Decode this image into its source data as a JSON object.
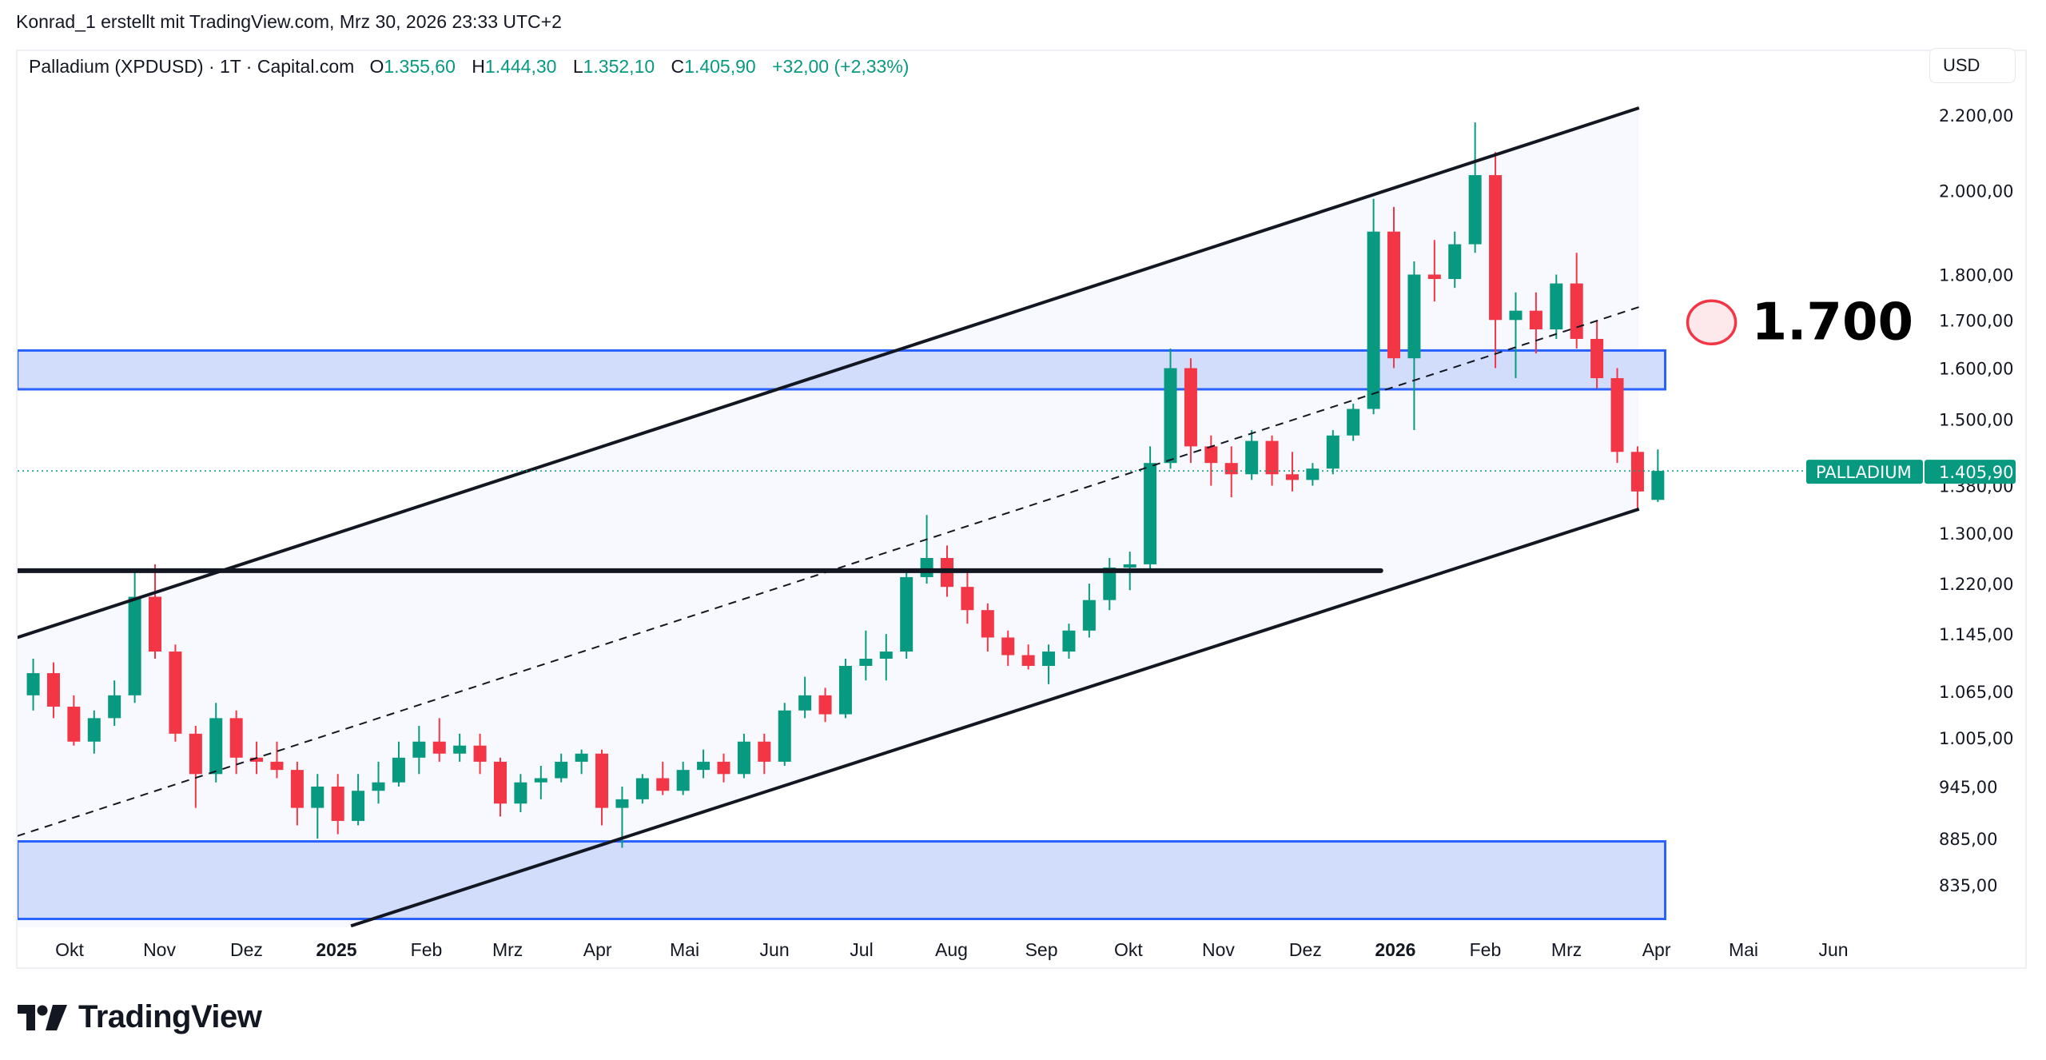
{
  "header": {
    "credit": "Konrad_1 erstellt mit TradingView.com, Mrz 30, 2026 23:33 UTC+2"
  },
  "legend": {
    "symbol": "Palladium (XPDUSD) · 1T · Capital.com",
    "open_label": "O",
    "open": "1.355,60",
    "high_label": "H",
    "high": "1.444,30",
    "low_label": "L",
    "low": "1.352,10",
    "close_label": "C",
    "close": "1.405,90",
    "change": "+32,00 (+2,33%)"
  },
  "currency_button": "USD",
  "last_price_tag": {
    "name": "PALLADIUM",
    "value": "1.405,90",
    "price": 1405.9
  },
  "annotation": {
    "text": "1.700",
    "icon": "circle-marker-icon"
  },
  "logo": {
    "text": "TradingView",
    "icon": "tradingview-logo-icon"
  },
  "colors": {
    "up": "#089981",
    "down": "#f23645",
    "zone": "#2962ff",
    "zone_fill": "#d0dbfc",
    "channel_fill": "#f8f9fe",
    "annotation": "#f23645"
  },
  "chart_data": {
    "type": "candlestick",
    "scale": "log",
    "grid": false,
    "ylim": [
      800,
      2260
    ],
    "xlim": [
      "2024-09-13",
      "2026-06-20"
    ],
    "y_ticks": [
      {
        "value": 2200,
        "label": "2.200,00"
      },
      {
        "value": 2000,
        "label": "2.000,00"
      },
      {
        "value": 1800,
        "label": "1.800,00"
      },
      {
        "value": 1700,
        "label": "1.700,00"
      },
      {
        "value": 1600,
        "label": "1.600,00"
      },
      {
        "value": 1500,
        "label": "1.500,00"
      },
      {
        "value": 1380,
        "label": "1.380,00"
      },
      {
        "value": 1300,
        "label": "1.300,00"
      },
      {
        "value": 1220,
        "label": "1.220,00"
      },
      {
        "value": 1145,
        "label": "1.145,00"
      },
      {
        "value": 1065,
        "label": "1.065,00"
      },
      {
        "value": 1005,
        "label": "1.005,00"
      },
      {
        "value": 945,
        "label": "945,00"
      },
      {
        "value": 885,
        "label": "885,00"
      },
      {
        "value": 835,
        "label": "835,00"
      }
    ],
    "x_ticks": [
      {
        "date": "2024-10-01",
        "label": "Okt"
      },
      {
        "date": "2024-11-01",
        "label": "Nov"
      },
      {
        "date": "2024-12-01",
        "label": "Dez"
      },
      {
        "date": "2025-01-01",
        "label": "2025",
        "bold": true
      },
      {
        "date": "2025-02-01",
        "label": "Feb"
      },
      {
        "date": "2025-03-01",
        "label": "Mrz"
      },
      {
        "date": "2025-04-01",
        "label": "Apr"
      },
      {
        "date": "2025-05-01",
        "label": "Mai"
      },
      {
        "date": "2025-06-01",
        "label": "Jun"
      },
      {
        "date": "2025-07-01",
        "label": "Jul"
      },
      {
        "date": "2025-08-01",
        "label": "Aug"
      },
      {
        "date": "2025-09-01",
        "label": "Sep"
      },
      {
        "date": "2025-10-01",
        "label": "Okt"
      },
      {
        "date": "2025-11-01",
        "label": "Nov"
      },
      {
        "date": "2025-12-01",
        "label": "Dez"
      },
      {
        "date": "2026-01-01",
        "label": "2026",
        "bold": true
      },
      {
        "date": "2026-02-01",
        "label": "Feb"
      },
      {
        "date": "2026-03-01",
        "label": "Mrz"
      },
      {
        "date": "2026-04-01",
        "label": "Apr"
      },
      {
        "date": "2026-05-01",
        "label": "Mai"
      },
      {
        "date": "2026-06-01",
        "label": "Jun"
      }
    ],
    "candles_columns": [
      "date",
      "open",
      "high",
      "low",
      "close"
    ],
    "candles": [
      [
        "2024-09-16",
        1060,
        1110,
        1040,
        1090
      ],
      [
        "2024-09-23",
        1090,
        1105,
        1030,
        1045
      ],
      [
        "2024-09-30",
        1045,
        1060,
        995,
        1000
      ],
      [
        "2024-10-07",
        1000,
        1040,
        985,
        1030
      ],
      [
        "2024-10-14",
        1030,
        1080,
        1020,
        1060
      ],
      [
        "2024-10-21",
        1060,
        1240,
        1050,
        1200
      ],
      [
        "2024-10-28",
        1200,
        1250,
        1110,
        1120
      ],
      [
        "2024-11-04",
        1120,
        1130,
        1000,
        1010
      ],
      [
        "2024-11-11",
        1010,
        1020,
        920,
        960
      ],
      [
        "2024-11-18",
        960,
        1050,
        950,
        1030
      ],
      [
        "2024-11-25",
        1030,
        1040,
        960,
        980
      ],
      [
        "2024-12-02",
        980,
        1000,
        960,
        975
      ],
      [
        "2024-12-09",
        975,
        1000,
        955,
        965
      ],
      [
        "2024-12-16",
        965,
        975,
        900,
        920
      ],
      [
        "2024-12-23",
        920,
        960,
        885,
        945
      ],
      [
        "2024-12-30",
        945,
        960,
        890,
        905
      ],
      [
        "2025-01-06",
        905,
        960,
        900,
        940
      ],
      [
        "2025-01-13",
        940,
        975,
        925,
        950
      ],
      [
        "2025-01-20",
        950,
        1000,
        945,
        980
      ],
      [
        "2025-01-27",
        980,
        1020,
        960,
        1000
      ],
      [
        "2025-02-03",
        1000,
        1030,
        975,
        985
      ],
      [
        "2025-02-10",
        985,
        1010,
        975,
        995
      ],
      [
        "2025-02-17",
        995,
        1010,
        960,
        975
      ],
      [
        "2025-02-24",
        975,
        980,
        910,
        925
      ],
      [
        "2025-03-03",
        925,
        960,
        915,
        950
      ],
      [
        "2025-03-10",
        950,
        970,
        930,
        955
      ],
      [
        "2025-03-17",
        955,
        985,
        950,
        975
      ],
      [
        "2025-03-24",
        975,
        990,
        960,
        985
      ],
      [
        "2025-03-31",
        985,
        990,
        900,
        920
      ],
      [
        "2025-04-07",
        920,
        945,
        875,
        930
      ],
      [
        "2025-04-14",
        930,
        960,
        925,
        955
      ],
      [
        "2025-04-21",
        955,
        975,
        935,
        940
      ],
      [
        "2025-04-28",
        940,
        975,
        935,
        965
      ],
      [
        "2025-05-05",
        965,
        990,
        955,
        975
      ],
      [
        "2025-05-12",
        975,
        985,
        950,
        960
      ],
      [
        "2025-05-19",
        960,
        1010,
        955,
        1000
      ],
      [
        "2025-05-26",
        1000,
        1010,
        960,
        975
      ],
      [
        "2025-06-02",
        975,
        1050,
        970,
        1040
      ],
      [
        "2025-06-09",
        1040,
        1085,
        1030,
        1060
      ],
      [
        "2025-06-16",
        1060,
        1070,
        1025,
        1035
      ],
      [
        "2025-06-23",
        1035,
        1110,
        1030,
        1100
      ],
      [
        "2025-06-30",
        1100,
        1150,
        1080,
        1110
      ],
      [
        "2025-07-07",
        1110,
        1145,
        1080,
        1120
      ],
      [
        "2025-07-14",
        1120,
        1240,
        1110,
        1230
      ],
      [
        "2025-07-21",
        1230,
        1330,
        1220,
        1260
      ],
      [
        "2025-07-28",
        1260,
        1280,
        1200,
        1215
      ],
      [
        "2025-08-04",
        1215,
        1240,
        1160,
        1180
      ],
      [
        "2025-08-11",
        1180,
        1190,
        1120,
        1140
      ],
      [
        "2025-08-18",
        1140,
        1150,
        1100,
        1115
      ],
      [
        "2025-08-25",
        1115,
        1130,
        1095,
        1100
      ],
      [
        "2025-09-01",
        1100,
        1130,
        1075,
        1120
      ],
      [
        "2025-09-08",
        1120,
        1160,
        1110,
        1150
      ],
      [
        "2025-09-15",
        1150,
        1220,
        1140,
        1195
      ],
      [
        "2025-09-22",
        1195,
        1260,
        1180,
        1245
      ],
      [
        "2025-09-29",
        1245,
        1270,
        1210,
        1250
      ],
      [
        "2025-10-06",
        1250,
        1450,
        1240,
        1420
      ],
      [
        "2025-10-13",
        1420,
        1640,
        1410,
        1600
      ],
      [
        "2025-10-20",
        1600,
        1620,
        1420,
        1450
      ],
      [
        "2025-10-27",
        1450,
        1470,
        1380,
        1420
      ],
      [
        "2025-11-03",
        1420,
        1450,
        1360,
        1400
      ],
      [
        "2025-11-10",
        1400,
        1480,
        1390,
        1460
      ],
      [
        "2025-11-17",
        1460,
        1470,
        1380,
        1400
      ],
      [
        "2025-11-24",
        1400,
        1440,
        1370,
        1390
      ],
      [
        "2025-12-01",
        1390,
        1420,
        1380,
        1410
      ],
      [
        "2025-12-08",
        1410,
        1480,
        1400,
        1470
      ],
      [
        "2025-12-15",
        1470,
        1530,
        1460,
        1520
      ],
      [
        "2025-12-22",
        1520,
        1980,
        1510,
        1900
      ],
      [
        "2025-12-29",
        1900,
        1960,
        1600,
        1620
      ],
      [
        "2026-01-05",
        1620,
        1830,
        1480,
        1800
      ],
      [
        "2026-01-12",
        1800,
        1880,
        1740,
        1790
      ],
      [
        "2026-01-19",
        1790,
        1900,
        1770,
        1870
      ],
      [
        "2026-01-26",
        1870,
        2180,
        1850,
        2040
      ],
      [
        "2026-02-02",
        2040,
        2100,
        1600,
        1700
      ],
      [
        "2026-02-09",
        1700,
        1760,
        1580,
        1720
      ],
      [
        "2026-02-16",
        1720,
        1760,
        1630,
        1680
      ],
      [
        "2026-02-23",
        1680,
        1800,
        1660,
        1780
      ],
      [
        "2026-03-02",
        1780,
        1850,
        1640,
        1660
      ],
      [
        "2026-03-09",
        1660,
        1700,
        1560,
        1580
      ],
      [
        "2026-03-16",
        1580,
        1600,
        1420,
        1440
      ],
      [
        "2026-03-23",
        1440,
        1450,
        1340,
        1370
      ],
      [
        "2026-03-30",
        1355.6,
        1444.3,
        1352.1,
        1405.9
      ]
    ],
    "drawings": {
      "channel_upper": [
        [
          "2024-09-13",
          1140
        ],
        [
          "2026-03-26",
          2220
        ]
      ],
      "channel_lower": [
        [
          "2025-01-06",
          793
        ],
        [
          "2026-03-26",
          1340
        ]
      ],
      "channel_mid_dashed": [
        [
          "2024-09-13",
          888
        ],
        [
          "2026-03-26",
          1728
        ]
      ],
      "horizontal_line": {
        "price": 1240,
        "from": "2024-09-13",
        "to": "2025-12-27"
      },
      "zone_upper": {
        "top": 1636,
        "bottom": 1558,
        "from": "2024-09-13",
        "to": "2026-04-04"
      },
      "zone_lower": {
        "top": 882,
        "bottom": 800,
        "from": "2024-09-13",
        "to": "2026-04-04"
      },
      "annotation_price": 1700,
      "annotation_date": "2026-04-20"
    }
  }
}
